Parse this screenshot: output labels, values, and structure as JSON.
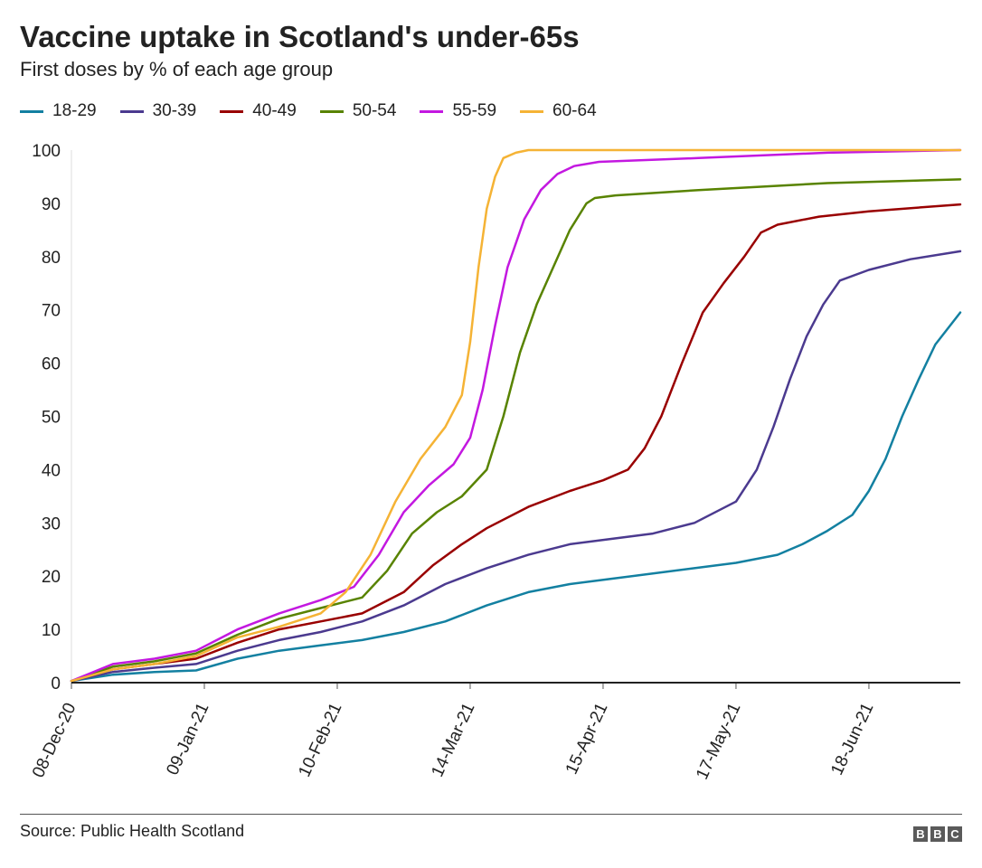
{
  "header": {
    "title": "Vaccine uptake in Scotland's under-65s",
    "subtitle": "First doses by % of each age group"
  },
  "footer": {
    "source": "Source: Public Health Scotland",
    "logo_letters": [
      "B",
      "B",
      "C"
    ]
  },
  "chart_data": {
    "type": "line",
    "title": "Vaccine uptake in Scotland's under-65s",
    "subtitle": "First doses by % of each age group",
    "xlabel": "",
    "ylabel": "",
    "x_start": "2020-12-08",
    "x_end": "2021-07-10",
    "x_ticks": [
      "08-Dec-20",
      "09-Jan-21",
      "10-Feb-21",
      "14-Mar-21",
      "15-Apr-21",
      "17-May-21",
      "18-Jun-21"
    ],
    "ylim": [
      0,
      100
    ],
    "y_ticks": [
      0,
      10,
      20,
      30,
      40,
      50,
      60,
      70,
      80,
      90,
      100
    ],
    "grid": false,
    "legend_position": "top-left",
    "series": [
      {
        "name": "18-29",
        "color": "#1380A1",
        "x": [
          "2020-12-08",
          "2020-12-18",
          "2020-12-28",
          "2021-01-07",
          "2021-01-17",
          "2021-01-27",
          "2021-02-06",
          "2021-02-16",
          "2021-02-26",
          "2021-03-08",
          "2021-03-18",
          "2021-03-28",
          "2021-04-07",
          "2021-04-17",
          "2021-04-27",
          "2021-05-07",
          "2021-05-17",
          "2021-05-27",
          "2021-06-02",
          "2021-06-08",
          "2021-06-14",
          "2021-06-18",
          "2021-06-22",
          "2021-06-26",
          "2021-06-30",
          "2021-07-04",
          "2021-07-10"
        ],
        "y": [
          0.3,
          1.5,
          2.0,
          2.3,
          4.5,
          6.0,
          7.0,
          8.0,
          9.5,
          11.5,
          14.5,
          17.0,
          18.5,
          19.5,
          20.5,
          21.5,
          22.5,
          24.0,
          26.0,
          28.5,
          31.5,
          36.0,
          42.0,
          50.0,
          57.0,
          63.5,
          69.5
        ]
      },
      {
        "name": "30-39",
        "color": "#4B3A8F",
        "x": [
          "2020-12-08",
          "2020-12-18",
          "2020-12-28",
          "2021-01-07",
          "2021-01-17",
          "2021-01-27",
          "2021-02-06",
          "2021-02-16",
          "2021-02-26",
          "2021-03-08",
          "2021-03-18",
          "2021-03-28",
          "2021-04-07",
          "2021-04-17",
          "2021-04-27",
          "2021-05-07",
          "2021-05-17",
          "2021-05-22",
          "2021-05-26",
          "2021-05-30",
          "2021-06-03",
          "2021-06-07",
          "2021-06-11",
          "2021-06-18",
          "2021-06-28",
          "2021-07-10"
        ],
        "y": [
          0.3,
          2.0,
          2.8,
          3.5,
          6.0,
          8.0,
          9.5,
          11.5,
          14.5,
          18.5,
          21.5,
          24.0,
          26.0,
          27.0,
          28.0,
          30.0,
          34.0,
          40.0,
          48.0,
          57.0,
          65.0,
          71.0,
          75.5,
          77.5,
          79.5,
          81.0
        ]
      },
      {
        "name": "40-49",
        "color": "#990000",
        "x": [
          "2020-12-08",
          "2020-12-18",
          "2020-12-28",
          "2021-01-07",
          "2021-01-17",
          "2021-01-27",
          "2021-02-06",
          "2021-02-16",
          "2021-02-26",
          "2021-03-05",
          "2021-03-12",
          "2021-03-18",
          "2021-03-28",
          "2021-04-07",
          "2021-04-15",
          "2021-04-21",
          "2021-04-25",
          "2021-04-29",
          "2021-05-04",
          "2021-05-09",
          "2021-05-14",
          "2021-05-19",
          "2021-05-23",
          "2021-05-27",
          "2021-06-06",
          "2021-06-18",
          "2021-07-10"
        ],
        "y": [
          0.3,
          2.5,
          3.5,
          4.5,
          7.5,
          10.0,
          11.5,
          13.0,
          17.0,
          22.0,
          26.0,
          29.0,
          33.0,
          36.0,
          38.0,
          40.0,
          44.0,
          50.0,
          60.0,
          69.5,
          75.0,
          80.0,
          84.5,
          86.0,
          87.5,
          88.5,
          89.8
        ]
      },
      {
        "name": "50-54",
        "color": "#588300",
        "x": [
          "2020-12-08",
          "2020-12-18",
          "2020-12-28",
          "2021-01-07",
          "2021-01-17",
          "2021-01-27",
          "2021-02-06",
          "2021-02-16",
          "2021-02-22",
          "2021-02-28",
          "2021-03-06",
          "2021-03-12",
          "2021-03-18",
          "2021-03-22",
          "2021-03-26",
          "2021-03-30",
          "2021-04-03",
          "2021-04-07",
          "2021-04-11",
          "2021-04-13",
          "2021-04-18",
          "2021-05-08",
          "2021-06-08",
          "2021-07-10"
        ],
        "y": [
          0.3,
          3.0,
          4.0,
          5.5,
          9.0,
          12.0,
          14.0,
          16.0,
          21.0,
          28.0,
          32.0,
          35.0,
          40.0,
          50.0,
          62.0,
          71.0,
          78.0,
          85.0,
          90.0,
          91.0,
          91.5,
          92.5,
          93.8,
          94.5
        ]
      },
      {
        "name": "55-59",
        "color": "#C318E0",
        "x": [
          "2020-12-08",
          "2020-12-18",
          "2020-12-28",
          "2021-01-07",
          "2021-01-17",
          "2021-01-27",
          "2021-02-06",
          "2021-02-14",
          "2021-02-20",
          "2021-02-26",
          "2021-03-04",
          "2021-03-10",
          "2021-03-14",
          "2021-03-17",
          "2021-03-20",
          "2021-03-23",
          "2021-03-27",
          "2021-03-31",
          "2021-04-04",
          "2021-04-08",
          "2021-04-14",
          "2021-05-08",
          "2021-06-08",
          "2021-07-10"
        ],
        "y": [
          0.3,
          3.5,
          4.5,
          6.0,
          10.0,
          13.0,
          15.5,
          18.0,
          24.0,
          32.0,
          37.0,
          41.0,
          46.0,
          55.0,
          67.0,
          78.0,
          87.0,
          92.5,
          95.5,
          97.0,
          97.8,
          98.5,
          99.5,
          100.0
        ]
      },
      {
        "name": "60-64",
        "color": "#F5B335",
        "x": [
          "2020-12-08",
          "2020-12-18",
          "2020-12-28",
          "2021-01-07",
          "2021-01-17",
          "2021-01-27",
          "2021-02-06",
          "2021-02-12",
          "2021-02-18",
          "2021-02-24",
          "2021-03-02",
          "2021-03-08",
          "2021-03-12",
          "2021-03-14",
          "2021-03-16",
          "2021-03-18",
          "2021-03-20",
          "2021-03-22",
          "2021-03-25",
          "2021-03-28",
          "2021-04-01",
          "2021-05-01",
          "2021-07-10"
        ],
        "y": [
          0.3,
          2.5,
          3.5,
          5.0,
          8.5,
          10.5,
          13.0,
          17.0,
          24.0,
          34.0,
          42.0,
          48.0,
          54.0,
          64.0,
          78.0,
          89.0,
          95.0,
          98.5,
          99.5,
          100.0,
          100.0,
          100.0,
          100.0
        ]
      }
    ]
  }
}
